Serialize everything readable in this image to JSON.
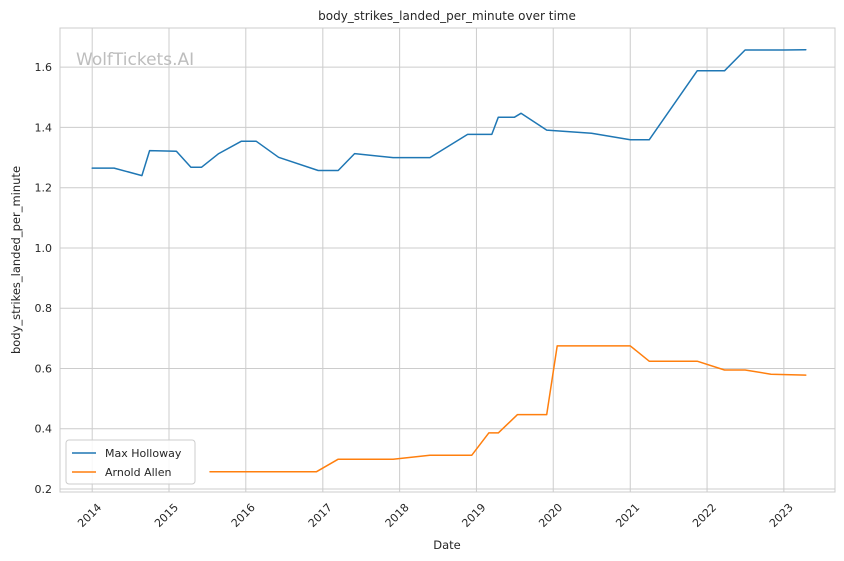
{
  "chart_data": {
    "type": "line",
    "title": "body_strikes_landed_per_minute over time",
    "xlabel": "Date",
    "ylabel": "body_strikes_landed_per_minute",
    "watermark": "WolfTickets.AI",
    "xlim": [
      "2013-08-01",
      "2023-09-01"
    ],
    "ylim": [
      0.19,
      1.73
    ],
    "x_ticks": [
      "2014",
      "2015",
      "2016",
      "2017",
      "2018",
      "2019",
      "2020",
      "2021",
      "2022",
      "2023"
    ],
    "y_ticks": [
      "0.2",
      "0.4",
      "0.6",
      "0.8",
      "1.0",
      "1.2",
      "1.4",
      "1.6"
    ],
    "grid": true,
    "legend_position": "lower-left",
    "series": [
      {
        "name": "Max Holloway",
        "color": "#1f77b4",
        "points": [
          [
            "2014-01-01",
            1.265
          ],
          [
            "2014-04-15",
            1.265
          ],
          [
            "2014-08-25",
            1.24
          ],
          [
            "2014-10-01",
            1.323
          ],
          [
            "2015-02-05",
            1.321
          ],
          [
            "2015-04-15",
            1.268
          ],
          [
            "2015-06-05",
            1.268
          ],
          [
            "2015-08-25",
            1.313
          ],
          [
            "2015-12-10",
            1.354
          ],
          [
            "2016-02-20",
            1.354
          ],
          [
            "2016-06-05",
            1.301
          ],
          [
            "2016-12-10",
            1.257
          ],
          [
            "2017-03-15",
            1.257
          ],
          [
            "2017-06-01",
            1.313
          ],
          [
            "2017-12-01",
            1.3
          ],
          [
            "2018-05-25",
            1.3
          ],
          [
            "2018-11-20",
            1.377
          ],
          [
            "2019-03-15",
            1.377
          ],
          [
            "2019-04-15",
            1.434
          ],
          [
            "2019-07-01",
            1.434
          ],
          [
            "2019-08-01",
            1.447
          ],
          [
            "2019-12-01",
            1.391
          ],
          [
            "2020-07-01",
            1.381
          ],
          [
            "2021-01-01",
            1.359
          ],
          [
            "2021-04-01",
            1.359
          ],
          [
            "2021-11-15",
            1.588
          ],
          [
            "2022-03-25",
            1.588
          ],
          [
            "2022-07-01",
            1.657
          ],
          [
            "2023-01-01",
            1.657
          ],
          [
            "2023-04-15",
            1.658
          ]
        ]
      },
      {
        "name": "Arnold Allen",
        "color": "#ff7f0e",
        "points": [
          [
            "2015-07-15",
            0.257
          ],
          [
            "2016-12-01",
            0.257
          ],
          [
            "2017-03-15",
            0.299
          ],
          [
            "2017-12-01",
            0.299
          ],
          [
            "2018-05-25",
            0.312
          ],
          [
            "2018-12-10",
            0.312
          ],
          [
            "2019-03-01",
            0.386
          ],
          [
            "2019-04-15",
            0.386
          ],
          [
            "2019-07-15",
            0.447
          ],
          [
            "2019-12-01",
            0.447
          ],
          [
            "2020-01-20",
            0.675
          ],
          [
            "2021-01-01",
            0.675
          ],
          [
            "2021-04-01",
            0.624
          ],
          [
            "2021-11-15",
            0.624
          ],
          [
            "2022-03-25",
            0.595
          ],
          [
            "2022-07-01",
            0.595
          ],
          [
            "2022-11-01",
            0.581
          ],
          [
            "2023-04-15",
            0.578
          ]
        ]
      }
    ]
  }
}
